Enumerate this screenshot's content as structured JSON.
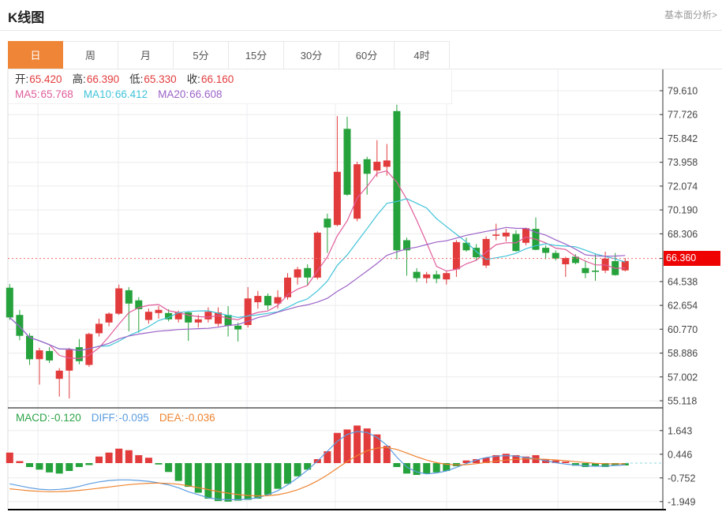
{
  "header": {
    "title": "K线图",
    "link": "基本面分析>"
  },
  "tabs": {
    "items": [
      "日",
      "周",
      "月",
      "5分",
      "15分",
      "30分",
      "60分",
      "4时"
    ],
    "names": [
      "day",
      "week",
      "month",
      "5min",
      "15min",
      "30min",
      "60min",
      "4hour"
    ],
    "selected": 0
  },
  "info": {
    "ohlc": [
      {
        "label": "开:",
        "value": "65.420"
      },
      {
        "label": "高:",
        "value": "66.390"
      },
      {
        "label": "低:",
        "value": "65.330"
      },
      {
        "label": "收:",
        "value": "66.160"
      }
    ],
    "ma": [
      {
        "label": "MA5:",
        "value": "65.768",
        "color": "#e05c9a"
      },
      {
        "label": "MA10:",
        "value": "66.412",
        "color": "#3fc3d8"
      },
      {
        "label": "MA20:",
        "value": "66.608",
        "color": "#9b62c8"
      }
    ]
  },
  "macd_info": [
    {
      "label": "MACD:",
      "value": "-0.120",
      "color": "#2ca347"
    },
    {
      "label": "DIFF:",
      "value": "-0.095",
      "color": "#5b9ce0"
    },
    {
      "label": "DEA:",
      "value": "-0.036",
      "color": "#ee8430"
    }
  ],
  "price_tag": {
    "value": "66.360"
  },
  "colors": {
    "up": "#e23b3c",
    "down": "#26a23c",
    "ma5": "#e05c9a",
    "ma10": "#3fc3d8",
    "ma20": "#9b62c8",
    "diff": "#5b9ce0",
    "dea": "#ee8430",
    "grid": "#ececec",
    "vgrid": "#ececf2",
    "axis": "#333333",
    "tick_text": "#444444",
    "price_line": "#f56a6a",
    "macd_zero_line": "#8fd8e0",
    "tab_selected": "#ef8537",
    "tag_bg": "#ee0202"
  },
  "chart_data": {
    "type": "candlestick",
    "title": "K线图 daily candlestick with MA5/MA10/MA20 and MACD",
    "current_price": 66.36,
    "main": {
      "ylim": [
        54.56,
        81.29
      ],
      "yticks": [
        {
          "t": "79.610",
          "v": 79.61
        },
        {
          "t": "77.726",
          "v": 77.726
        },
        {
          "t": "75.842",
          "v": 75.842
        },
        {
          "t": "73.958",
          "v": 73.958
        },
        {
          "t": "72.074",
          "v": 72.074
        },
        {
          "t": "70.190",
          "v": 70.19
        },
        {
          "t": "68.306",
          "v": 68.306
        },
        {
          "t": "64.538",
          "v": 64.538
        },
        {
          "t": "62.654",
          "v": 62.654
        },
        {
          "t": "60.770",
          "v": 60.77
        },
        {
          "t": "58.886",
          "v": 58.886
        },
        {
          "t": "57.002",
          "v": 57.002
        },
        {
          "t": "55.118",
          "v": 55.118
        }
      ],
      "ma_periods": [
        5,
        10,
        20
      ],
      "candles": [
        [
          64.05,
          64.35,
          61.5,
          61.7
        ],
        [
          61.9,
          62.3,
          59.9,
          60.25
        ],
        [
          60.25,
          60.45,
          57.95,
          58.4
        ],
        [
          58.4,
          59.3,
          56.4,
          59.1
        ],
        [
          59.05,
          59.35,
          58.1,
          58.3
        ],
        [
          56.85,
          57.7,
          55.45,
          57.5
        ],
        [
          57.5,
          59.3,
          55.3,
          59.15
        ],
        [
          59.35,
          60.0,
          58.0,
          58.25
        ],
        [
          57.95,
          60.5,
          57.8,
          60.4
        ],
        [
          60.45,
          61.6,
          60.2,
          61.2
        ],
        [
          61.3,
          62.1,
          61.0,
          62.0
        ],
        [
          62.0,
          64.3,
          61.9,
          64.0
        ],
        [
          63.85,
          64.1,
          60.6,
          62.8
        ],
        [
          63.05,
          63.3,
          60.5,
          62.35
        ],
        [
          61.5,
          62.4,
          61.2,
          62.15
        ],
        [
          62.05,
          62.6,
          61.6,
          62.3
        ],
        [
          62.05,
          62.35,
          61.4,
          61.55
        ],
        [
          61.55,
          62.25,
          61.3,
          62.1
        ],
        [
          62.1,
          62.2,
          59.85,
          61.3
        ],
        [
          61.3,
          61.9,
          60.9,
          61.55
        ],
        [
          61.55,
          62.5,
          61.3,
          62.15
        ],
        [
          61.2,
          62.5,
          61.0,
          62.1
        ],
        [
          61.9,
          62.6,
          60.2,
          61.05
        ],
        [
          61.05,
          61.3,
          59.8,
          60.75
        ],
        [
          61.1,
          64.1,
          60.9,
          63.2
        ],
        [
          62.9,
          63.8,
          62.4,
          63.4
        ],
        [
          63.4,
          63.6,
          62.3,
          62.65
        ],
        [
          62.8,
          63.85,
          62.4,
          63.3
        ],
        [
          63.3,
          65.2,
          63.1,
          64.85
        ],
        [
          64.85,
          65.7,
          64.3,
          65.5
        ],
        [
          65.6,
          65.9,
          64.2,
          64.85
        ],
        [
          64.85,
          68.5,
          64.7,
          68.4
        ],
        [
          69.5,
          69.9,
          66.8,
          68.8
        ],
        [
          69.0,
          77.6,
          68.9,
          73.2
        ],
        [
          76.6,
          77.55,
          71.3,
          71.4
        ],
        [
          69.5,
          74.0,
          69.3,
          73.8
        ],
        [
          74.2,
          74.4,
          71.4,
          73.05
        ],
        [
          73.3,
          75.7,
          72.8,
          74.0
        ],
        [
          73.6,
          75.4,
          72.9,
          74.1
        ],
        [
          78.0,
          78.5,
          66.3,
          67.0
        ],
        [
          67.8,
          68.0,
          65.0,
          67.0
        ],
        [
          65.3,
          65.6,
          64.5,
          64.8
        ],
        [
          64.8,
          65.3,
          64.4,
          65.1
        ],
        [
          65.1,
          65.4,
          64.4,
          64.75
        ],
        [
          64.7,
          65.35,
          64.3,
          65.2
        ],
        [
          65.5,
          67.8,
          64.9,
          67.65
        ],
        [
          67.6,
          68.0,
          66.9,
          67.0
        ],
        [
          67.2,
          67.5,
          66.2,
          66.45
        ],
        [
          65.8,
          68.1,
          65.6,
          67.9
        ],
        [
          68.15,
          69.1,
          67.8,
          68.25
        ],
        [
          68.1,
          68.7,
          67.7,
          68.4
        ],
        [
          68.3,
          68.6,
          66.9,
          66.95
        ],
        [
          67.6,
          68.8,
          67.4,
          68.75
        ],
        [
          68.7,
          69.6,
          67.0,
          67.05
        ],
        [
          67.2,
          67.4,
          66.3,
          66.8
        ],
        [
          66.8,
          67.0,
          66.2,
          66.35
        ],
        [
          65.9,
          66.5,
          64.9,
          66.4
        ],
        [
          66.5,
          66.7,
          65.9,
          66.0
        ],
        [
          65.6,
          66.2,
          64.8,
          65.2
        ],
        [
          65.4,
          66.7,
          64.6,
          65.3
        ],
        [
          65.4,
          66.9,
          65.2,
          66.35
        ],
        [
          66.15,
          66.8,
          65.0,
          65.05
        ],
        [
          65.42,
          66.39,
          65.33,
          66.16
        ]
      ]
    },
    "macd": {
      "ylim": [
        -2.354,
        2.793
      ],
      "yticks": [
        {
          "t": "1.643",
          "v": 1.643
        },
        {
          "t": "0.446",
          "v": 0.446
        },
        {
          "t": "-0.752",
          "v": -0.752
        },
        {
          "t": "-1.949",
          "v": -1.949
        }
      ],
      "histogram": [
        0.53,
        0.1,
        -0.2,
        -0.33,
        -0.47,
        -0.53,
        -0.4,
        -0.2,
        -0.1,
        0.33,
        0.53,
        0.73,
        0.65,
        0.4,
        0.27,
        -0.07,
        -0.45,
        -0.9,
        -1.2,
        -1.5,
        -1.8,
        -1.92,
        -1.95,
        -1.9,
        -1.86,
        -1.8,
        -1.6,
        -1.3,
        -1.05,
        -0.67,
        -0.33,
        0.2,
        0.6,
        1.53,
        1.7,
        1.9,
        1.75,
        1.45,
        0.87,
        -0.2,
        -0.53,
        -0.6,
        -0.53,
        -0.47,
        -0.4,
        -0.16,
        0.13,
        0.2,
        0.27,
        0.4,
        0.47,
        0.4,
        0.33,
        0.4,
        0.2,
        0.13,
        0.07,
        -0.13,
        -0.2,
        -0.16,
        -0.2,
        -0.13,
        -0.12
      ],
      "diff": [
        -1.05,
        -1.15,
        -1.25,
        -1.32,
        -1.35,
        -1.33,
        -1.28,
        -1.18,
        -1.05,
        -0.95,
        -0.88,
        -0.85,
        -0.85,
        -0.88,
        -0.92,
        -1.0,
        -1.1,
        -1.25,
        -1.45,
        -1.6,
        -1.75,
        -1.83,
        -1.85,
        -1.85,
        -1.82,
        -1.75,
        -1.6,
        -1.4,
        -1.1,
        -0.75,
        -0.35,
        0.1,
        0.6,
        1.1,
        1.45,
        1.6,
        1.55,
        1.3,
        0.9,
        0.3,
        -0.2,
        -0.45,
        -0.55,
        -0.5,
        -0.4,
        -0.22,
        -0.02,
        0.15,
        0.28,
        0.35,
        0.38,
        0.35,
        0.28,
        0.22,
        0.12,
        0.02,
        -0.05,
        -0.1,
        -0.14,
        -0.16,
        -0.15,
        -0.12,
        -0.095
      ],
      "dea": [
        -1.3,
        -1.35,
        -1.4,
        -1.43,
        -1.45,
        -1.44,
        -1.42,
        -1.38,
        -1.33,
        -1.27,
        -1.21,
        -1.15,
        -1.09,
        -1.05,
        -1.02,
        -1.01,
        -1.03,
        -1.07,
        -1.15,
        -1.24,
        -1.34,
        -1.44,
        -1.52,
        -1.59,
        -1.64,
        -1.66,
        -1.65,
        -1.6,
        -1.5,
        -1.35,
        -1.15,
        -0.9,
        -0.6,
        -0.26,
        0.08,
        0.38,
        0.62,
        0.76,
        0.79,
        0.69,
        0.51,
        0.32,
        0.15,
        0.02,
        -0.06,
        -0.09,
        -0.08,
        -0.03,
        0.03,
        0.09,
        0.15,
        0.19,
        0.21,
        0.21,
        0.19,
        0.16,
        0.12,
        0.07,
        0.03,
        -0.01,
        -0.03,
        -0.04,
        -0.036
      ]
    },
    "vgrid_x": [
      48,
      150,
      313,
      425,
      566,
      707
    ]
  }
}
